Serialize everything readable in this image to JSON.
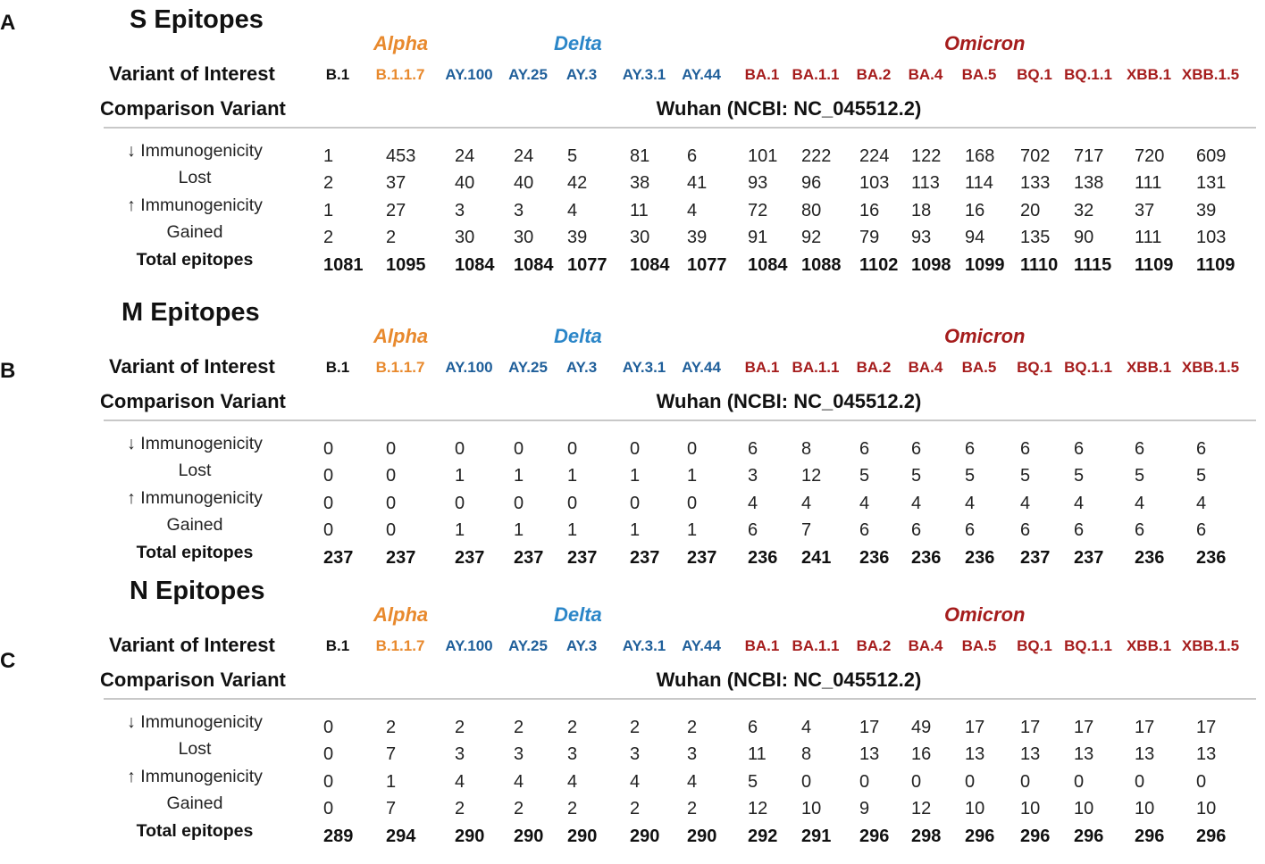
{
  "row_labels": {
    "variant": "Variant of Interest",
    "comparison": "Comparison Variant"
  },
  "comparison_value": "Wuhan (NCBI: NC_045512.2)",
  "groups": {
    "alpha": "Alpha",
    "delta": "Delta",
    "omicron": "Omicron"
  },
  "variants": [
    "B.1",
    "B.1.1.7",
    "AY.100",
    "AY.25",
    "AY.3",
    "AY.3.1",
    "AY.44",
    "BA.1",
    "BA.1.1",
    "BA.2",
    "BA.4",
    "BA.5",
    "BQ.1",
    "BQ.1.1",
    "XBB.1",
    "XBB.1.5"
  ],
  "variant_colors": {
    "B.1": "#111111",
    "B.1.1.7": "#e8892d",
    "delta": "#1f5f9a",
    "omicron": "#a51c1c"
  },
  "metrics": [
    "↓ Immunogenicity",
    "Lost",
    "↑ Immunogenicity",
    "Gained",
    "Total epitopes"
  ],
  "panels": [
    {
      "letter": "A",
      "title": "S Epitopes",
      "rows": [
        [
          "1",
          "453",
          "24",
          "24",
          "5",
          "81",
          "6",
          "101",
          "222",
          "224",
          "122",
          "168",
          "702",
          "717",
          "720",
          "609"
        ],
        [
          "2",
          "37",
          "40",
          "40",
          "42",
          "38",
          "41",
          "93",
          "96",
          "103",
          "113",
          "114",
          "133",
          "138",
          "111",
          "131"
        ],
        [
          "1",
          "27",
          "3",
          "3",
          "4",
          "11",
          "4",
          "72",
          "80",
          "16",
          "18",
          "16",
          "20",
          "32",
          "37",
          "39"
        ],
        [
          "2",
          "2",
          "30",
          "30",
          "39",
          "30",
          "39",
          "91",
          "92",
          "79",
          "93",
          "94",
          "135",
          "90",
          "111",
          "103"
        ],
        [
          "1081",
          "1095",
          "1084",
          "1084",
          "1077",
          "1084",
          "1077",
          "1084",
          "1088",
          "1102",
          "1098",
          "1099",
          "1110",
          "1115",
          "1109",
          "1109"
        ]
      ]
    },
    {
      "letter": "B",
      "title": "M Epitopes",
      "rows": [
        [
          "0",
          "0",
          "0",
          "0",
          "0",
          "0",
          "0",
          "6",
          "8",
          "6",
          "6",
          "6",
          "6",
          "6",
          "6",
          "6"
        ],
        [
          "0",
          "0",
          "1",
          "1",
          "1",
          "1",
          "1",
          "3",
          "12",
          "5",
          "5",
          "5",
          "5",
          "5",
          "5",
          "5"
        ],
        [
          "0",
          "0",
          "0",
          "0",
          "0",
          "0",
          "0",
          "4",
          "4",
          "4",
          "4",
          "4",
          "4",
          "4",
          "4",
          "4"
        ],
        [
          "0",
          "0",
          "1",
          "1",
          "1",
          "1",
          "1",
          "6",
          "7",
          "6",
          "6",
          "6",
          "6",
          "6",
          "6",
          "6"
        ],
        [
          "237",
          "237",
          "237",
          "237",
          "237",
          "237",
          "237",
          "236",
          "241",
          "236",
          "236",
          "236",
          "237",
          "237",
          "236",
          "236"
        ]
      ]
    },
    {
      "letter": "C",
      "title": "N Epitopes",
      "rows": [
        [
          "0",
          "2",
          "2",
          "2",
          "2",
          "2",
          "2",
          "6",
          "4",
          "17",
          "49",
          "17",
          "17",
          "17",
          "17",
          "17"
        ],
        [
          "0",
          "7",
          "3",
          "3",
          "3",
          "3",
          "3",
          "11",
          "8",
          "13",
          "16",
          "13",
          "13",
          "13",
          "13",
          "13"
        ],
        [
          "0",
          "1",
          "4",
          "4",
          "4",
          "4",
          "4",
          "5",
          "0",
          "0",
          "0",
          "0",
          "0",
          "0",
          "0",
          "0"
        ],
        [
          "0",
          "7",
          "2",
          "2",
          "2",
          "2",
          "2",
          "12",
          "10",
          "9",
          "12",
          "10",
          "10",
          "10",
          "10",
          "10"
        ],
        [
          "289",
          "294",
          "290",
          "290",
          "290",
          "290",
          "290",
          "292",
          "291",
          "296",
          "298",
          "296",
          "296",
          "296",
          "296",
          "296"
        ]
      ]
    }
  ]
}
